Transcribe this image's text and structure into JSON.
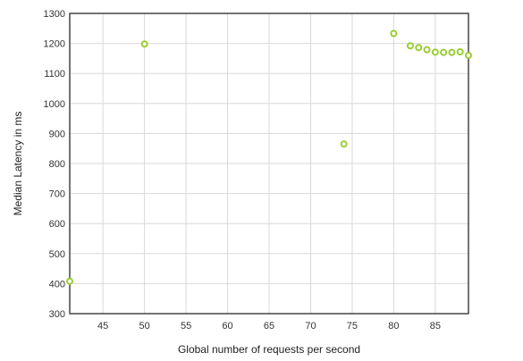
{
  "chart_data": {
    "type": "scatter",
    "xlabel": "Global number of requests per second",
    "ylabel": "Median Latency in ms",
    "xlim": [
      41,
      89
    ],
    "ylim": [
      300,
      1300
    ],
    "x_ticks": [
      45,
      50,
      55,
      60,
      65,
      70,
      75,
      80,
      85
    ],
    "y_ticks": [
      300,
      400,
      500,
      600,
      700,
      800,
      900,
      1000,
      1100,
      1200,
      1300
    ],
    "grid": true,
    "marker_color": "#9acd32",
    "points": [
      {
        "x": 41,
        "y": 408
      },
      {
        "x": 50,
        "y": 1198
      },
      {
        "x": 74,
        "y": 865
      },
      {
        "x": 80,
        "y": 1233
      },
      {
        "x": 82,
        "y": 1192
      },
      {
        "x": 83,
        "y": 1186
      },
      {
        "x": 84,
        "y": 1179
      },
      {
        "x": 85,
        "y": 1171
      },
      {
        "x": 86,
        "y": 1170
      },
      {
        "x": 87,
        "y": 1170
      },
      {
        "x": 88,
        "y": 1172
      },
      {
        "x": 89,
        "y": 1160
      }
    ]
  }
}
